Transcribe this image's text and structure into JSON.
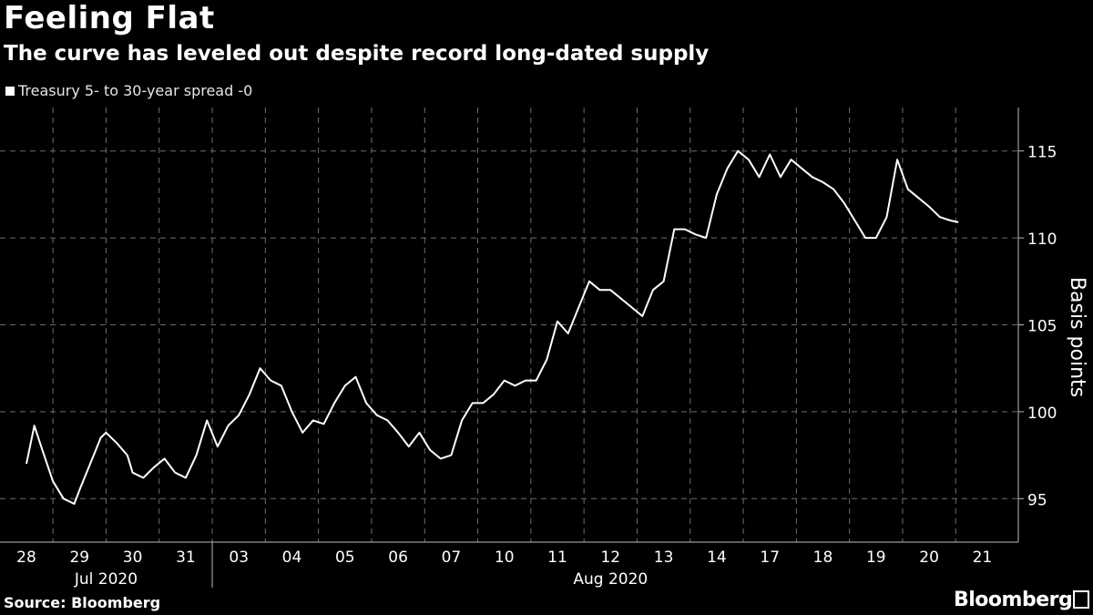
{
  "header": {
    "title": "Feeling Flat",
    "subtitle": "The curve has leveled out despite record long-dated supply"
  },
  "legend": {
    "label": "Treasury 5- to 30-year spread -0"
  },
  "footer": {
    "source": "Source: Bloomberg",
    "brand": "Bloomberg"
  },
  "colors": {
    "background": "#000000",
    "line": "#ffffff",
    "grid": "#6e6e6e",
    "text": "#ffffff"
  },
  "chart_data": {
    "type": "line",
    "title": "Feeling Flat",
    "subtitle": "The curve has leveled out despite record long-dated supply",
    "ylabel": "Basis points",
    "xlabel": "",
    "ylim": [
      92.5,
      117.5
    ],
    "yticks": [
      95,
      100,
      105,
      110,
      115
    ],
    "x_tick_labels": [
      "28",
      "29",
      "30",
      "31",
      "03",
      "04",
      "05",
      "06",
      "07",
      "10",
      "11",
      "12",
      "13",
      "14",
      "17",
      "18",
      "19",
      "20",
      "21"
    ],
    "month_labels": [
      "Jul 2020",
      "Aug 2020"
    ],
    "legend_position": "top-left",
    "grid": true,
    "series": [
      {
        "name": "Treasury 5- to 30-year spread -0",
        "day_index": [
          0.0,
          0.15,
          0.3,
          0.5,
          0.7,
          0.9,
          1.0,
          1.2,
          1.4,
          1.5,
          1.7,
          1.9,
          2.0,
          2.2,
          2.4,
          2.6,
          2.8,
          3.0,
          3.2,
          3.4,
          3.6,
          3.8,
          4.0,
          4.2,
          4.4,
          4.6,
          4.8,
          5.0,
          5.2,
          5.4,
          5.6,
          5.8,
          6.0,
          6.2,
          6.4,
          6.6,
          6.8,
          7.0,
          7.2,
          7.4,
          7.6,
          7.8,
          8.0,
          8.2,
          8.4,
          8.6,
          8.8,
          9.0,
          9.2,
          9.4,
          9.6,
          9.8,
          10.0,
          10.2,
          10.4,
          10.6,
          10.8,
          11.0,
          11.2,
          11.4,
          11.6,
          11.8,
          12.0,
          12.2,
          12.4,
          12.6,
          12.8,
          13.0,
          13.2,
          13.4,
          13.6,
          13.8,
          14.0,
          14.2,
          14.4,
          14.6,
          14.8,
          15.0,
          15.2,
          15.4,
          15.6,
          15.8,
          16.0,
          16.2,
          16.4,
          16.6,
          16.8,
          17.0,
          17.2,
          17.4,
          17.55
        ],
        "values": [
          97.0,
          99.2,
          97.8,
          96.0,
          95.0,
          94.7,
          95.5,
          97.0,
          98.5,
          98.8,
          98.2,
          97.5,
          96.5,
          96.2,
          96.8,
          97.3,
          96.5,
          96.2,
          97.5,
          99.5,
          98.0,
          99.2,
          99.8,
          101.0,
          102.5,
          101.8,
          101.5,
          100.0,
          98.8,
          99.5,
          99.3,
          100.5,
          101.5,
          102.0,
          100.5,
          99.8,
          99.5,
          98.8,
          98.0,
          98.8,
          97.8,
          97.3,
          97.5,
          99.5,
          100.5,
          100.5,
          101.0,
          101.8,
          101.5,
          101.8,
          101.8,
          103.0,
          105.2,
          104.5,
          106.0,
          107.5,
          107.0,
          107.0,
          106.5,
          106.0,
          105.5,
          107.0,
          107.5,
          110.5,
          110.5,
          110.2,
          110.0,
          112.5,
          114.0,
          115.0,
          114.5,
          113.5,
          114.8,
          113.5,
          114.5,
          114.0,
          113.5,
          113.2,
          112.8,
          112.0,
          111.0,
          110.0,
          110.0,
          111.2,
          114.5,
          112.8,
          112.3,
          111.8,
          111.2,
          111.0,
          110.9
        ]
      }
    ]
  }
}
